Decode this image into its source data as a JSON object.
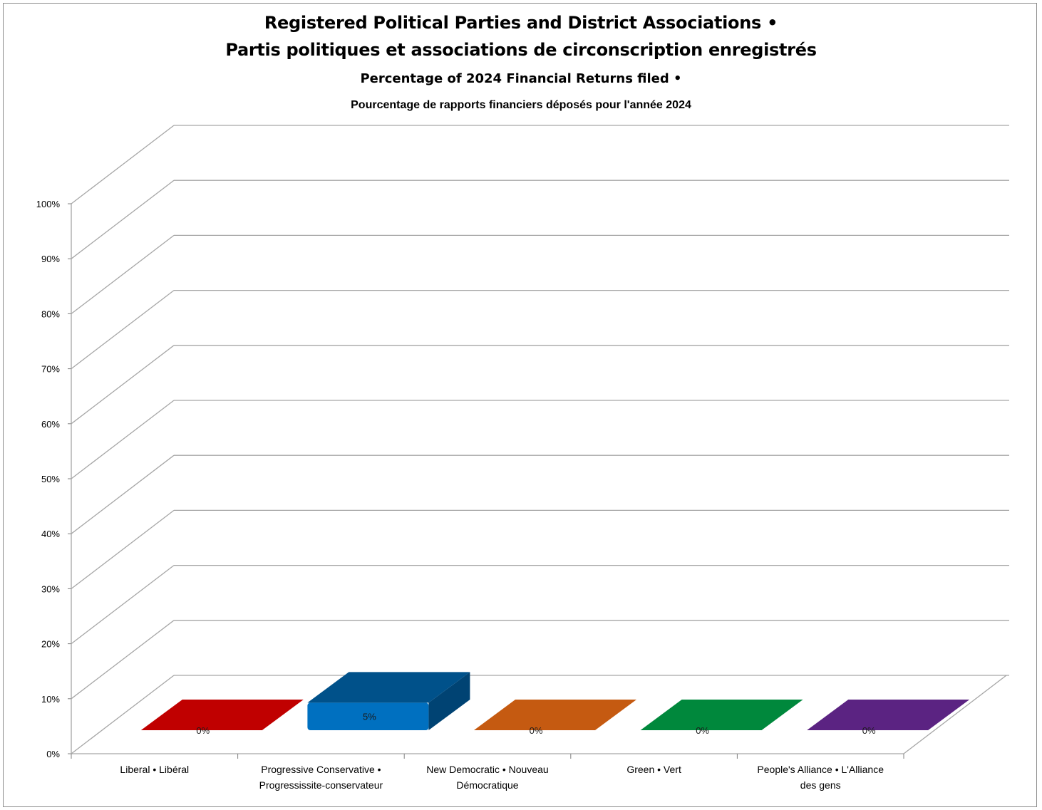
{
  "chart_data": {
    "type": "bar",
    "title": "Registered Political Parties and District Associations •",
    "title_line2": "Partis politiques et associations de circonscription enregistrés",
    "subtitle": "Percentage of 2024 Financial Returns filed •",
    "subtitle_line2": "Pourcentage de rapports financiers déposés pour l'année 2024",
    "categories": [
      [
        "Liberal • Libéral"
      ],
      [
        "Progressive Conservative •",
        "Progressissite-conservateur"
      ],
      [
        "New Democratic • Nouveau",
        "Démocratique"
      ],
      [
        "Green • Vert"
      ],
      [
        "People's Alliance • L'Alliance",
        "des gens"
      ]
    ],
    "values": [
      0,
      5,
      0,
      0,
      0
    ],
    "data_labels": [
      "0%",
      "5%",
      "0%",
      "0%",
      "0%"
    ],
    "colors": [
      "#c00000",
      "#0070c0",
      "#c55a11",
      "#00883c",
      "#5b2382"
    ],
    "yticks": [
      "0%",
      "10%",
      "20%",
      "30%",
      "40%",
      "50%",
      "60%",
      "70%",
      "80%",
      "90%",
      "100%"
    ],
    "ylim": [
      0,
      100
    ],
    "grid": true,
    "style": "3d-column"
  }
}
